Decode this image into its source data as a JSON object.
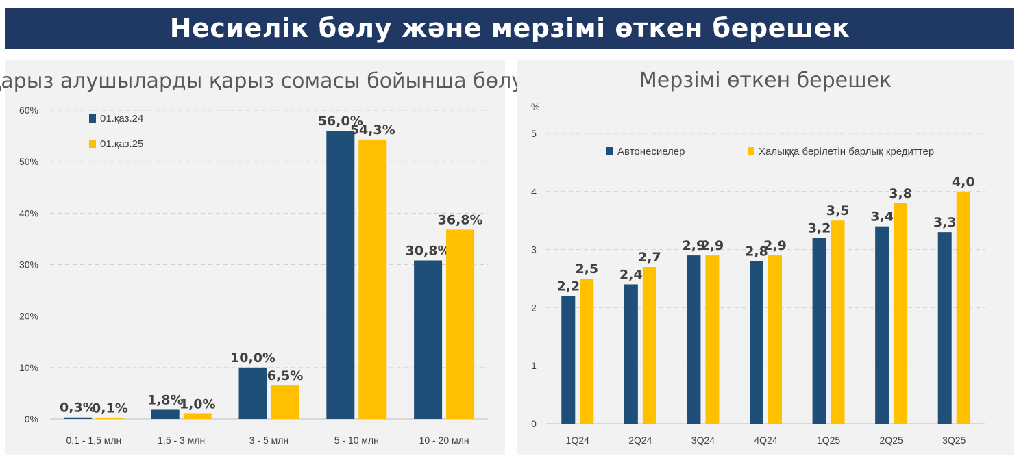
{
  "page_title": "Несиелік бөлу және мерзімі өткен берешек",
  "colors": {
    "banner": "#1f3864",
    "series_navy": "#1f4e79",
    "series_gold": "#ffc000",
    "panel": "#f2f2f2"
  },
  "chart_data": [
    {
      "type": "bar",
      "title": "Қарыз алушыларды қарыз сомасы бойынша бөлу",
      "categories": [
        "0,1 - 1,5 млн",
        "1,5 - 3 млн",
        "3 - 5 млн",
        "5 - 10 млн",
        "10 - 20 млн"
      ],
      "series": [
        {
          "name": "01.қаз.24",
          "values": [
            0.3,
            1.8,
            10.0,
            56.0,
            30.8
          ],
          "labels": [
            "0,3%",
            "1,8%",
            "10,0%",
            "56,0%",
            "30,8%"
          ]
        },
        {
          "name": "01.қаз.25",
          "values": [
            0.1,
            1.0,
            6.5,
            54.3,
            36.8
          ],
          "labels": [
            "0,1%",
            "1,0%",
            "6,5%",
            "54,3%",
            "36,8%"
          ]
        }
      ],
      "ylim": [
        0,
        60
      ],
      "yticks": [
        "0%",
        "10%",
        "20%",
        "30%",
        "40%",
        "50%",
        "60%"
      ],
      "legend_position": "top-left",
      "grid": true
    },
    {
      "type": "bar",
      "title": "Мерзімі өткен берешек",
      "ylabel": "%",
      "categories": [
        "1Q24",
        "2Q24",
        "3Q24",
        "4Q24",
        "1Q25",
        "2Q25",
        "3Q25"
      ],
      "series": [
        {
          "name": "Автонесиелер",
          "values": [
            2.2,
            2.4,
            2.9,
            2.8,
            3.2,
            3.4,
            3.3
          ],
          "labels": [
            "2,2",
            "2,4",
            "2,9",
            "2,8",
            "3,2",
            "3,4",
            "3,3"
          ]
        },
        {
          "name": "Халыққа берілетін барлық кредиттер",
          "values": [
            2.5,
            2.7,
            2.9,
            2.9,
            3.5,
            3.8,
            4.0
          ],
          "labels": [
            "2,5",
            "2,7",
            "2,9",
            "2,9",
            "3,5",
            "3,8",
            "4,0"
          ]
        }
      ],
      "ylim": [
        0,
        5
      ],
      "yticks": [
        "0",
        "1",
        "2",
        "3",
        "4",
        "5"
      ],
      "legend_position": "top",
      "grid": true
    }
  ]
}
